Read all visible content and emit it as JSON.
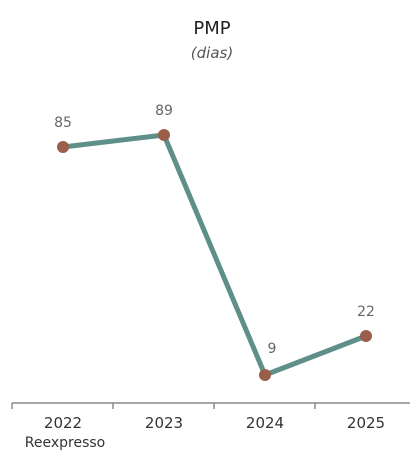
{
  "chart_data": {
    "type": "line",
    "title": "PMP",
    "subtitle": "(dias)",
    "categories": [
      "2022",
      "2023",
      "2024",
      "2025"
    ],
    "category_sublabels": [
      "Reexpresso",
      "",
      "",
      ""
    ],
    "series": [
      {
        "values": [
          85,
          89,
          9,
          22
        ],
        "data_labels": [
          "85",
          "89",
          "9",
          "22"
        ]
      }
    ],
    "ylim": [
      0,
      100
    ],
    "grid": false,
    "colors": {
      "line": "#5f8f89",
      "marker": "#995f4a",
      "axis": "#8a8a8a",
      "text": "#333333",
      "label": "#666666"
    }
  }
}
